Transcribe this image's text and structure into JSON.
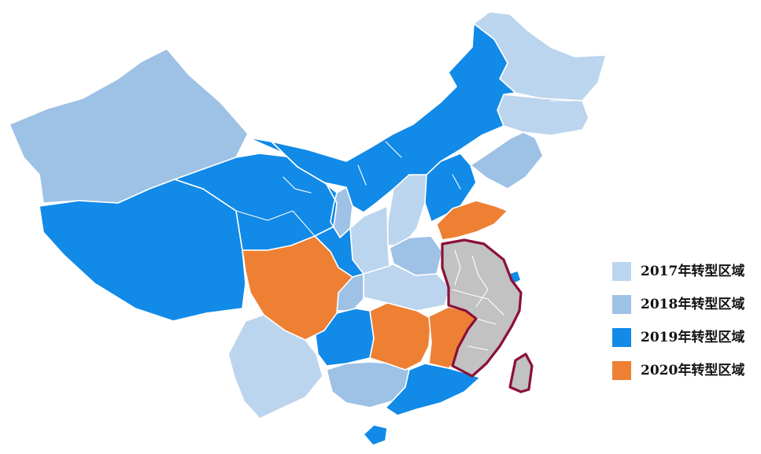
{
  "colors": {
    "y2017": "#bcd5ee",
    "y2018": "#9ec1e6",
    "y2019": "#118ae8",
    "y2020": "#ee8034",
    "excluded_fill": "#c2c2c2",
    "excluded_outline": "#8b1038"
  },
  "legend": {
    "items": [
      {
        "label": "2017年转型区域",
        "color": "#bcd5ee"
      },
      {
        "label": "2018年转型区域",
        "color": "#9ec1e6"
      },
      {
        "label": "2019年转型区域",
        "color": "#118ae8"
      },
      {
        "label": "2020年转型区域",
        "color": "#ee8034"
      }
    ]
  }
}
